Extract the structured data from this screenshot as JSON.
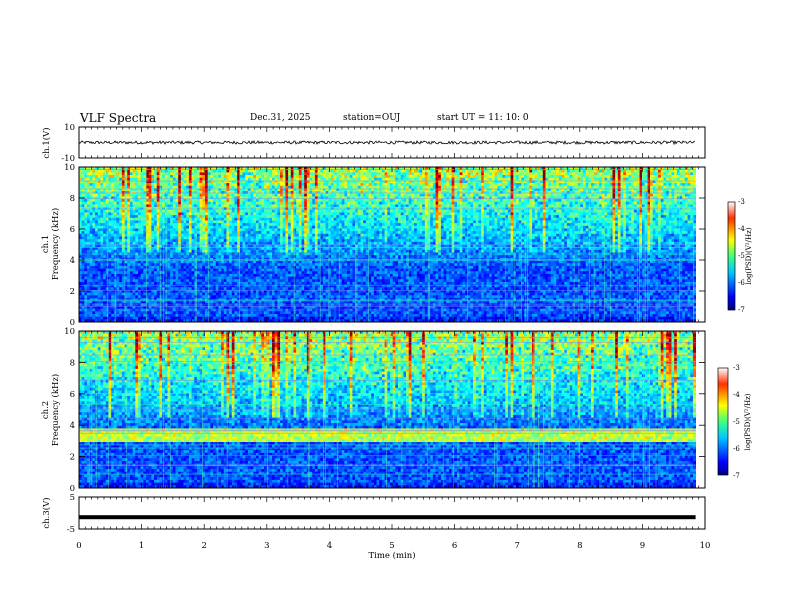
{
  "header": {
    "title": "VLF Spectra",
    "date": "Dec.31, 2025",
    "station": "station=OUJ",
    "start_ut": "start UT =   11: 10: 0"
  },
  "chart_data": [
    {
      "type": "line",
      "panel": "ch1-waveform",
      "ylabel": "ch.1(V)",
      "ylim": [
        -10,
        10
      ],
      "yticks": [
        "10",
        "-10"
      ],
      "description_values": {
        "baseline_v": 0,
        "noise_amplitude_v": 1
      }
    },
    {
      "type": "heatmap",
      "panel": "ch1-spectrogram",
      "ylabel": "ch.1\nFrequency (kHz)",
      "ylabel_line1": "ch.1",
      "ylabel_line2": "Frequency (kHz)",
      "ylim": [
        0,
        10
      ],
      "yticks": [
        "0",
        "2",
        "4",
        "6",
        "8",
        "10"
      ],
      "colorbar": {
        "label": "log(PSD)(V²/Hz)",
        "range": [
          -7,
          -3
        ],
        "ticks": [
          "-3",
          "-4",
          "-5",
          "-6",
          "-7"
        ]
      }
    },
    {
      "type": "heatmap",
      "panel": "ch2-spectrogram",
      "ylabel_line1": "ch.2",
      "ylabel_line2": "Frequency (kHz)",
      "ylim": [
        0,
        10
      ],
      "yticks": [
        "0",
        "2",
        "4",
        "6",
        "8",
        "10"
      ],
      "colorbar": {
        "label": "log(PSD)(V²/Hz)",
        "range": [
          -7,
          -3
        ],
        "ticks": [
          "-3",
          "-4",
          "-5",
          "-6",
          "-7"
        ]
      }
    },
    {
      "type": "line",
      "panel": "ch3-waveform",
      "ylabel": "ch.3(V)",
      "ylim": [
        -5,
        5
      ],
      "yticks": [
        "5",
        "-5"
      ],
      "description_values": {
        "level_v": -1.3
      }
    }
  ],
  "xaxis": {
    "label": "Time (min)",
    "range": [
      0,
      10
    ],
    "ticks": [
      "0",
      "1",
      "2",
      "3",
      "4",
      "5",
      "6",
      "7",
      "8",
      "9",
      "10"
    ],
    "data_end_min": 9.85
  },
  "colors": {
    "background": "#ffffff",
    "axes": "#000000"
  }
}
